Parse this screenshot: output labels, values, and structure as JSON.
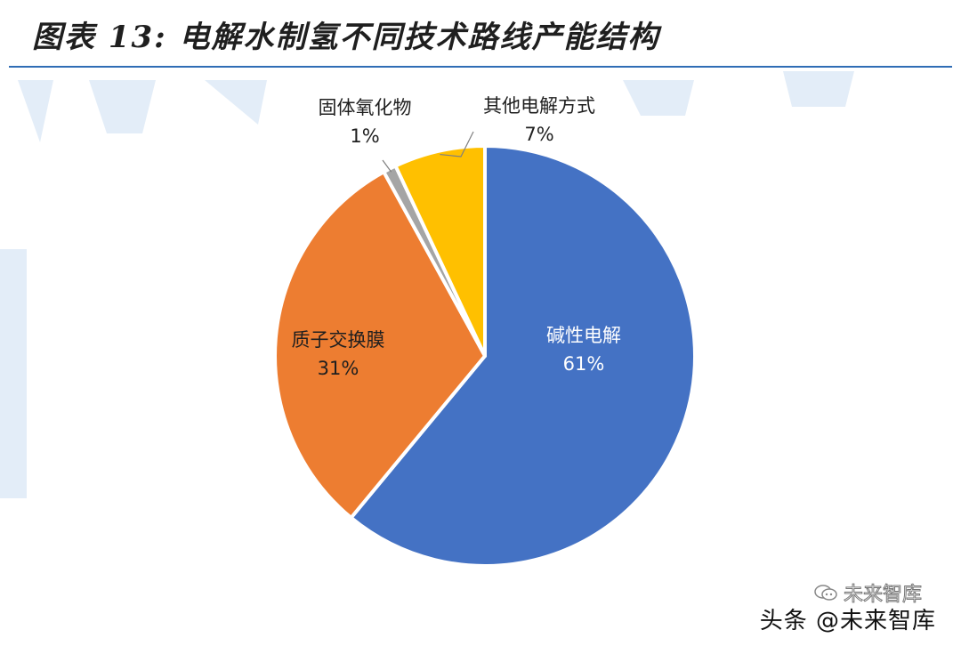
{
  "header": {
    "title": "图表 13:  电解水制氢不同技术路线产能结构"
  },
  "chart_data": {
    "type": "pie",
    "slices": [
      {
        "label": "碱性电解",
        "value": 61,
        "display": "61%",
        "color": "#4472C4"
      },
      {
        "label": "质子交换膜",
        "value": 31,
        "display": "31%",
        "color": "#ED7D31"
      },
      {
        "label": "固体氧化物",
        "value": 1,
        "display": "1%",
        "color": "#A5A5A5"
      },
      {
        "label": "其他电解方式",
        "value": 7,
        "display": "7%",
        "color": "#FFC000"
      }
    ]
  },
  "footer": {
    "watermark_left": "头条 @未来智库",
    "watermark_small": "未来智库"
  },
  "colors": {
    "accent_rule": "#2f6db5",
    "background_watermark": "#dfeaf6"
  }
}
